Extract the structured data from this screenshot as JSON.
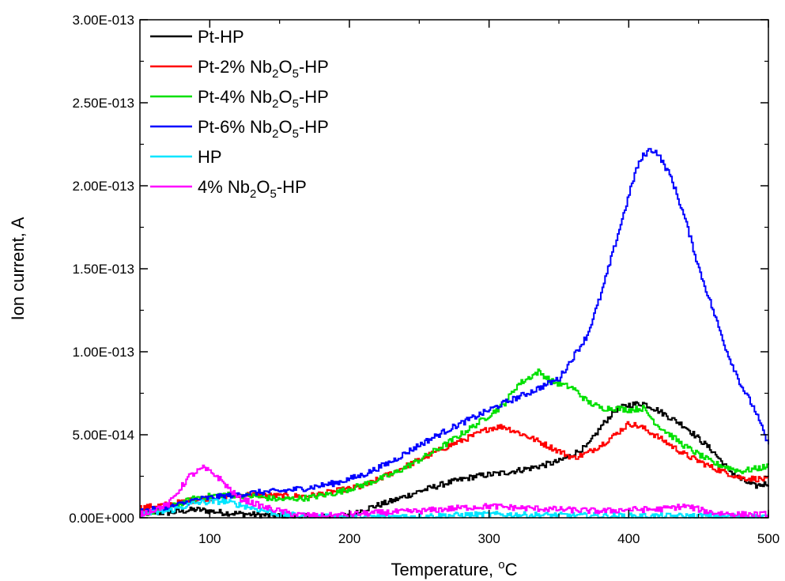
{
  "chart_data": {
    "type": "line",
    "title": "",
    "xlabel": "Temperature, ",
    "xlabel_sup": "o",
    "xlabel_unit": "C",
    "ylabel": "Ion current, A",
    "xlim": [
      50,
      500
    ],
    "ylim": [
      0,
      3e-13
    ],
    "xticks": [
      100,
      200,
      300,
      400,
      500
    ],
    "xtick_labels": [
      "100",
      "200",
      "300",
      "400",
      "500"
    ],
    "yticks": [
      0,
      5e-14,
      1e-13,
      1.5e-13,
      2e-13,
      2.5e-13,
      3e-13
    ],
    "ytick_labels": [
      "0.00E+000",
      "5.00E-014",
      "1.00E-013",
      "1.50E-013",
      "2.00E-013",
      "2.50E-013",
      "3.00E-013"
    ],
    "grid": false,
    "legend_position": "top-left",
    "series": [
      {
        "name": "Pt-HP",
        "legend_parts": [
          [
            "t",
            "Pt-HP"
          ]
        ],
        "color": "#000000",
        "x": [
          50,
          70,
          90,
          110,
          130,
          150,
          170,
          190,
          200,
          210,
          230,
          250,
          270,
          290,
          310,
          330,
          350,
          370,
          380,
          390,
          400,
          410,
          420,
          440,
          460,
          470,
          480,
          490,
          500
        ],
        "y": [
          3e-15,
          3e-15,
          5e-15,
          3e-15,
          2e-15,
          1e-15,
          5e-16,
          5e-16,
          1e-15,
          5e-15,
          1e-14,
          1.6e-14,
          2.1e-14,
          2.5e-14,
          2.7e-14,
          3e-14,
          3.4e-14,
          4.3e-14,
          5.5e-14,
          6.5e-14,
          6.8e-14,
          6.9e-14,
          6.5e-14,
          5.5e-14,
          4e-14,
          3e-14,
          2.3e-14,
          1.9e-14,
          2.1e-14
        ]
      },
      {
        "name": "Pt-2% Nb2O5-HP",
        "legend_parts": [
          [
            "t",
            "Pt-2% Nb"
          ],
          [
            "sub",
            "2"
          ],
          [
            "t",
            "O"
          ],
          [
            "sub",
            "5"
          ],
          [
            "t",
            "-HP"
          ]
        ],
        "color": "#ff0000",
        "x": [
          50,
          70,
          90,
          110,
          130,
          150,
          170,
          190,
          210,
          230,
          250,
          270,
          290,
          300,
          310,
          330,
          350,
          360,
          370,
          380,
          390,
          400,
          410,
          420,
          440,
          460,
          480,
          500
        ],
        "y": [
          6e-15,
          8e-15,
          1.1e-14,
          1.3e-14,
          1.4e-14,
          1.3e-14,
          1.3e-14,
          1.6e-14,
          1.9e-14,
          2.7e-14,
          3.5e-14,
          4.3e-14,
          5e-14,
          5.4e-14,
          5.5e-14,
          4.8e-14,
          4e-14,
          3.6e-14,
          3.9e-14,
          4.4e-14,
          5e-14,
          5.7e-14,
          5.4e-14,
          4.9e-14,
          3.8e-14,
          3e-14,
          2.4e-14,
          2.3e-14
        ]
      },
      {
        "name": "Pt-4% Nb2O5-HP",
        "legend_parts": [
          [
            "t",
            "Pt-4% Nb"
          ],
          [
            "sub",
            "2"
          ],
          [
            "t",
            "O"
          ],
          [
            "sub",
            "5"
          ],
          [
            "t",
            "-HP"
          ]
        ],
        "color": "#00e000",
        "x": [
          50,
          70,
          90,
          110,
          130,
          150,
          170,
          190,
          210,
          230,
          250,
          270,
          290,
          310,
          320,
          335,
          345,
          360,
          370,
          380,
          390,
          400,
          410,
          420,
          440,
          460,
          480,
          500
        ],
        "y": [
          2e-15,
          6e-15,
          1.2e-14,
          1.4e-14,
          1.3e-14,
          1.1e-14,
          1.2e-14,
          1.5e-14,
          2e-14,
          2.6e-14,
          3.5e-14,
          4.5e-14,
          5.6e-14,
          6.8e-14,
          8e-14,
          8.8e-14,
          8.2e-14,
          7.8e-14,
          7e-14,
          6.6e-14,
          6.6e-14,
          6.5e-14,
          6.6e-14,
          5.6e-14,
          4.3e-14,
          3.3e-14,
          2.8e-14,
          3.1e-14
        ]
      },
      {
        "name": "Pt-6% Nb2O5-HP",
        "legend_parts": [
          [
            "t",
            "Pt-6% Nb"
          ],
          [
            "sub",
            "2"
          ],
          [
            "t",
            "O"
          ],
          [
            "sub",
            "5"
          ],
          [
            "t",
            "-HP"
          ]
        ],
        "color": "#0000ff",
        "x": [
          50,
          70,
          90,
          110,
          130,
          150,
          170,
          190,
          210,
          230,
          250,
          270,
          290,
          310,
          330,
          350,
          370,
          380,
          390,
          400,
          405,
          410,
          415,
          420,
          430,
          440,
          450,
          460,
          470,
          480,
          490,
          500
        ],
        "y": [
          4e-15,
          6e-15,
          1.1e-14,
          1.3e-14,
          1.5e-14,
          1.6e-14,
          1.8e-14,
          2.1e-14,
          2.6e-14,
          3.4e-14,
          4.4e-14,
          5.3e-14,
          6.1e-14,
          6.9e-14,
          7.6e-14,
          8.4e-14,
          1.1e-13,
          1.35e-13,
          1.65e-13,
          1.95e-13,
          2.1e-13,
          2.18e-13,
          2.22e-13,
          2.2e-13,
          2.05e-13,
          1.8e-13,
          1.5e-13,
          1.25e-13,
          1e-13,
          8e-14,
          6.5e-14,
          4.3e-14
        ]
      },
      {
        "name": "HP",
        "legend_parts": [
          [
            "t",
            "HP"
          ]
        ],
        "color": "#00e5ff",
        "x": [
          50,
          70,
          90,
          110,
          130,
          150,
          170,
          200,
          250,
          300,
          350,
          400,
          450,
          500
        ],
        "y": [
          2e-15,
          4e-15,
          9e-15,
          1e-14,
          6e-15,
          2e-15,
          1e-15,
          5e-16,
          1e-15,
          2e-15,
          1.5e-15,
          1e-15,
          1e-15,
          5e-16
        ]
      },
      {
        "name": "4% Nb2O5-HP",
        "legend_parts": [
          [
            "t",
            "4% Nb"
          ],
          [
            "sub",
            "2"
          ],
          [
            "t",
            "O"
          ],
          [
            "sub",
            "5"
          ],
          [
            "t",
            "-HP"
          ]
        ],
        "color": "#ff00ff",
        "x": [
          50,
          70,
          85,
          95,
          105,
          120,
          140,
          160,
          180,
          200,
          220,
          250,
          280,
          300,
          320,
          350,
          380,
          400,
          420,
          440,
          460,
          480,
          500
        ],
        "y": [
          2e-15,
          8e-15,
          2.5e-14,
          3e-14,
          2.5e-14,
          1.2e-14,
          6e-15,
          2e-15,
          1e-15,
          2e-15,
          3e-15,
          4e-15,
          6e-15,
          7e-15,
          6e-15,
          5e-15,
          4e-15,
          5e-15,
          5e-15,
          7e-15,
          3e-15,
          2e-15,
          2e-15
        ]
      }
    ]
  }
}
